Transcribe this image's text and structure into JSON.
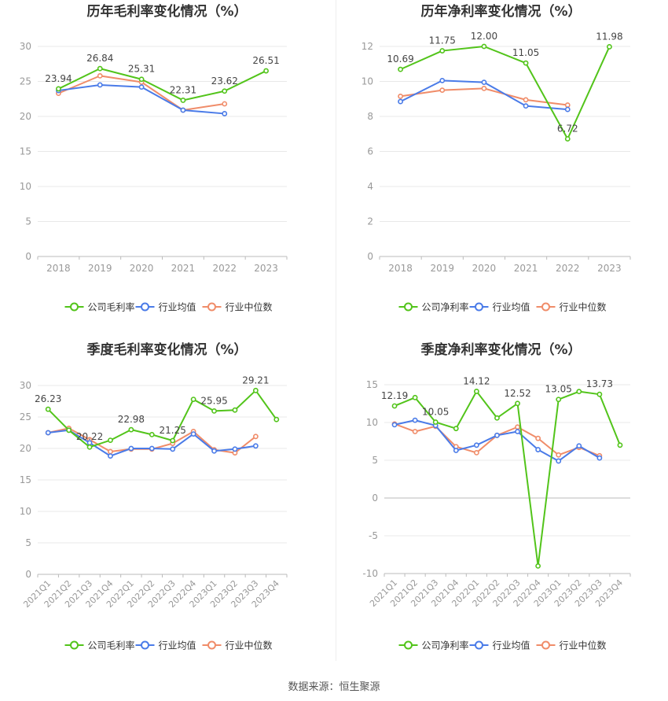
{
  "footer": "数据来源：恒生聚源",
  "legend_labels": {
    "gross_company": "公司毛利率",
    "net_company": "公司净利率",
    "industry_avg": "行业均值",
    "industry_median": "行业中位数"
  },
  "colors": {
    "company": "#52c41a",
    "industry_avg": "#4a7be8",
    "industry_median": "#f08c69"
  },
  "chart_data": [
    {
      "type": "line",
      "title": "历年毛利率变化情况（%）",
      "categories": [
        "2018",
        "2019",
        "2020",
        "2021",
        "2022",
        "2023"
      ],
      "yticks": [
        0,
        5,
        10,
        15,
        20,
        25,
        30
      ],
      "ylim": [
        0,
        30
      ],
      "series": [
        {
          "name": "公司毛利率",
          "values": [
            23.94,
            26.84,
            25.31,
            22.31,
            23.62,
            26.51
          ],
          "labels": [
            "23.94",
            "26.84",
            "25.31",
            "22.31",
            "23.62",
            "26.51"
          ]
        },
        {
          "name": "行业均值",
          "values": [
            23.7,
            24.5,
            24.2,
            20.9,
            20.4,
            null
          ]
        },
        {
          "name": "行业中位数",
          "values": [
            23.3,
            25.8,
            24.9,
            20.9,
            21.8,
            null
          ]
        }
      ]
    },
    {
      "type": "line",
      "title": "历年净利率变化情况（%）",
      "categories": [
        "2018",
        "2019",
        "2020",
        "2021",
        "2022",
        "2023"
      ],
      "yticks": [
        0,
        2,
        4,
        6,
        8,
        10,
        12
      ],
      "ylim": [
        0,
        12
      ],
      "series": [
        {
          "name": "公司净利率",
          "values": [
            10.69,
            11.75,
            12.0,
            11.05,
            6.72,
            11.98
          ],
          "labels": [
            "10.69",
            "11.75",
            "12.00",
            "11.05",
            "6.72",
            "11.98"
          ]
        },
        {
          "name": "行业均值",
          "values": [
            8.85,
            10.05,
            9.95,
            8.6,
            8.4,
            null
          ]
        },
        {
          "name": "行业中位数",
          "values": [
            9.15,
            9.5,
            9.6,
            8.95,
            8.65,
            null
          ]
        }
      ]
    },
    {
      "type": "line",
      "title": "季度毛利率变化情况（%）",
      "categories": [
        "2021Q1",
        "2021Q2",
        "2021Q3",
        "2021Q4",
        "2022Q1",
        "2022Q2",
        "2022Q3",
        "2022Q4",
        "2023Q1",
        "2023Q2",
        "2023Q3",
        "2023Q4"
      ],
      "yticks": [
        0,
        5,
        10,
        15,
        20,
        25,
        30
      ],
      "ylim": [
        0,
        30
      ],
      "series": [
        {
          "name": "公司毛利率",
          "values": [
            26.23,
            22.9,
            20.22,
            21.3,
            22.98,
            22.2,
            21.25,
            27.8,
            25.95,
            26.1,
            29.21,
            24.6
          ],
          "labels": [
            "26.23",
            "",
            "20.22",
            "",
            "22.98",
            "",
            "21.25",
            "",
            "25.95",
            "",
            "29.21",
            ""
          ]
        },
        {
          "name": "行业均值",
          "values": [
            22.5,
            22.9,
            20.9,
            18.8,
            20.0,
            20.0,
            19.9,
            22.3,
            19.6,
            19.9,
            20.4,
            null
          ]
        },
        {
          "name": "行业中位数",
          "values": [
            22.5,
            23.2,
            21.4,
            19.5,
            19.9,
            19.9,
            20.8,
            22.7,
            19.8,
            19.3,
            21.9,
            null
          ]
        }
      ]
    },
    {
      "type": "line",
      "title": "季度净利率变化情况（%）",
      "categories": [
        "2021Q1",
        "2021Q2",
        "2021Q3",
        "2021Q4",
        "2022Q1",
        "2022Q2",
        "2022Q3",
        "2022Q4",
        "2023Q1",
        "2023Q2",
        "2023Q3",
        "2023Q4"
      ],
      "yticks": [
        -10,
        -5,
        0,
        5,
        10,
        15
      ],
      "ylim": [
        -10,
        15
      ],
      "series": [
        {
          "name": "公司净利率",
          "values": [
            12.19,
            13.3,
            10.05,
            9.2,
            14.12,
            10.6,
            12.52,
            -9.0,
            13.05,
            14.1,
            13.73,
            7.0
          ],
          "labels": [
            "12.19",
            "",
            "10.05",
            "",
            "14.12",
            "",
            "12.52",
            "",
            "13.05",
            "",
            "13.73",
            ""
          ]
        },
        {
          "name": "行业均值",
          "values": [
            9.7,
            10.3,
            9.6,
            6.3,
            7.0,
            8.3,
            8.8,
            6.4,
            4.9,
            6.9,
            5.3,
            null
          ]
        },
        {
          "name": "行业中位数",
          "values": [
            9.8,
            8.8,
            9.5,
            6.8,
            6.0,
            8.3,
            9.4,
            7.9,
            5.7,
            6.7,
            5.6,
            null
          ]
        }
      ]
    }
  ]
}
